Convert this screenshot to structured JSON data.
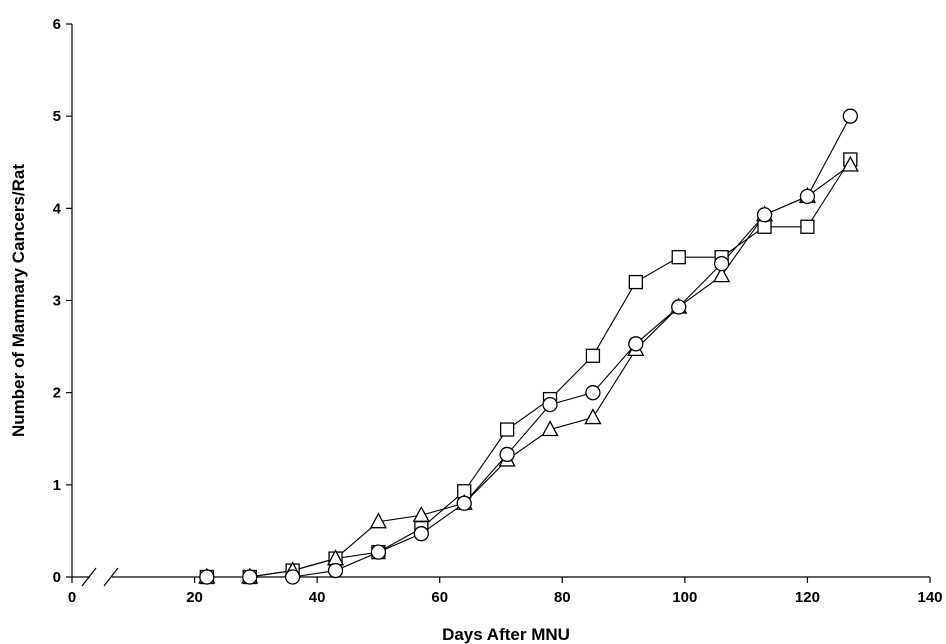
{
  "chart_data": {
    "type": "line",
    "xlabel": "Days After MNU",
    "ylabel": "Number of Mammary Cancers/Rat",
    "xlim": [
      0,
      140
    ],
    "ylim": [
      0,
      6
    ],
    "x_ticks": [
      0,
      20,
      40,
      60,
      80,
      100,
      120,
      140
    ],
    "y_ticks": [
      0,
      1,
      2,
      3,
      4,
      5,
      6
    ],
    "axis_break": "x between 0 and 20",
    "grid": false,
    "legend": "none",
    "series": [
      {
        "marker": "square",
        "x": [
          22,
          29,
          36,
          43,
          50,
          57,
          64,
          71,
          78,
          85,
          92,
          99,
          106,
          113,
          120,
          127
        ],
        "y": [
          0,
          0,
          0.07,
          0.2,
          0.27,
          0.53,
          0.93,
          1.6,
          1.93,
          2.4,
          3.2,
          3.47,
          3.47,
          3.8,
          3.8,
          4.53
        ]
      },
      {
        "marker": "triangle",
        "x": [
          22,
          29,
          36,
          43,
          50,
          57,
          64,
          71,
          78,
          85,
          92,
          99,
          106,
          113,
          120,
          127
        ],
        "y": [
          0,
          0,
          0.07,
          0.2,
          0.6,
          0.67,
          0.8,
          1.27,
          1.6,
          1.73,
          2.47,
          2.93,
          3.27,
          3.93,
          4.13,
          4.47
        ]
      },
      {
        "marker": "circle",
        "x": [
          22,
          29,
          36,
          43,
          50,
          57,
          64,
          71,
          78,
          85,
          92,
          99,
          106,
          113,
          120,
          127
        ],
        "y": [
          0,
          0,
          0,
          0.07,
          0.27,
          0.47,
          0.8,
          1.33,
          1.87,
          2.0,
          2.53,
          2.93,
          3.4,
          3.93,
          4.13,
          5.0
        ]
      }
    ]
  }
}
